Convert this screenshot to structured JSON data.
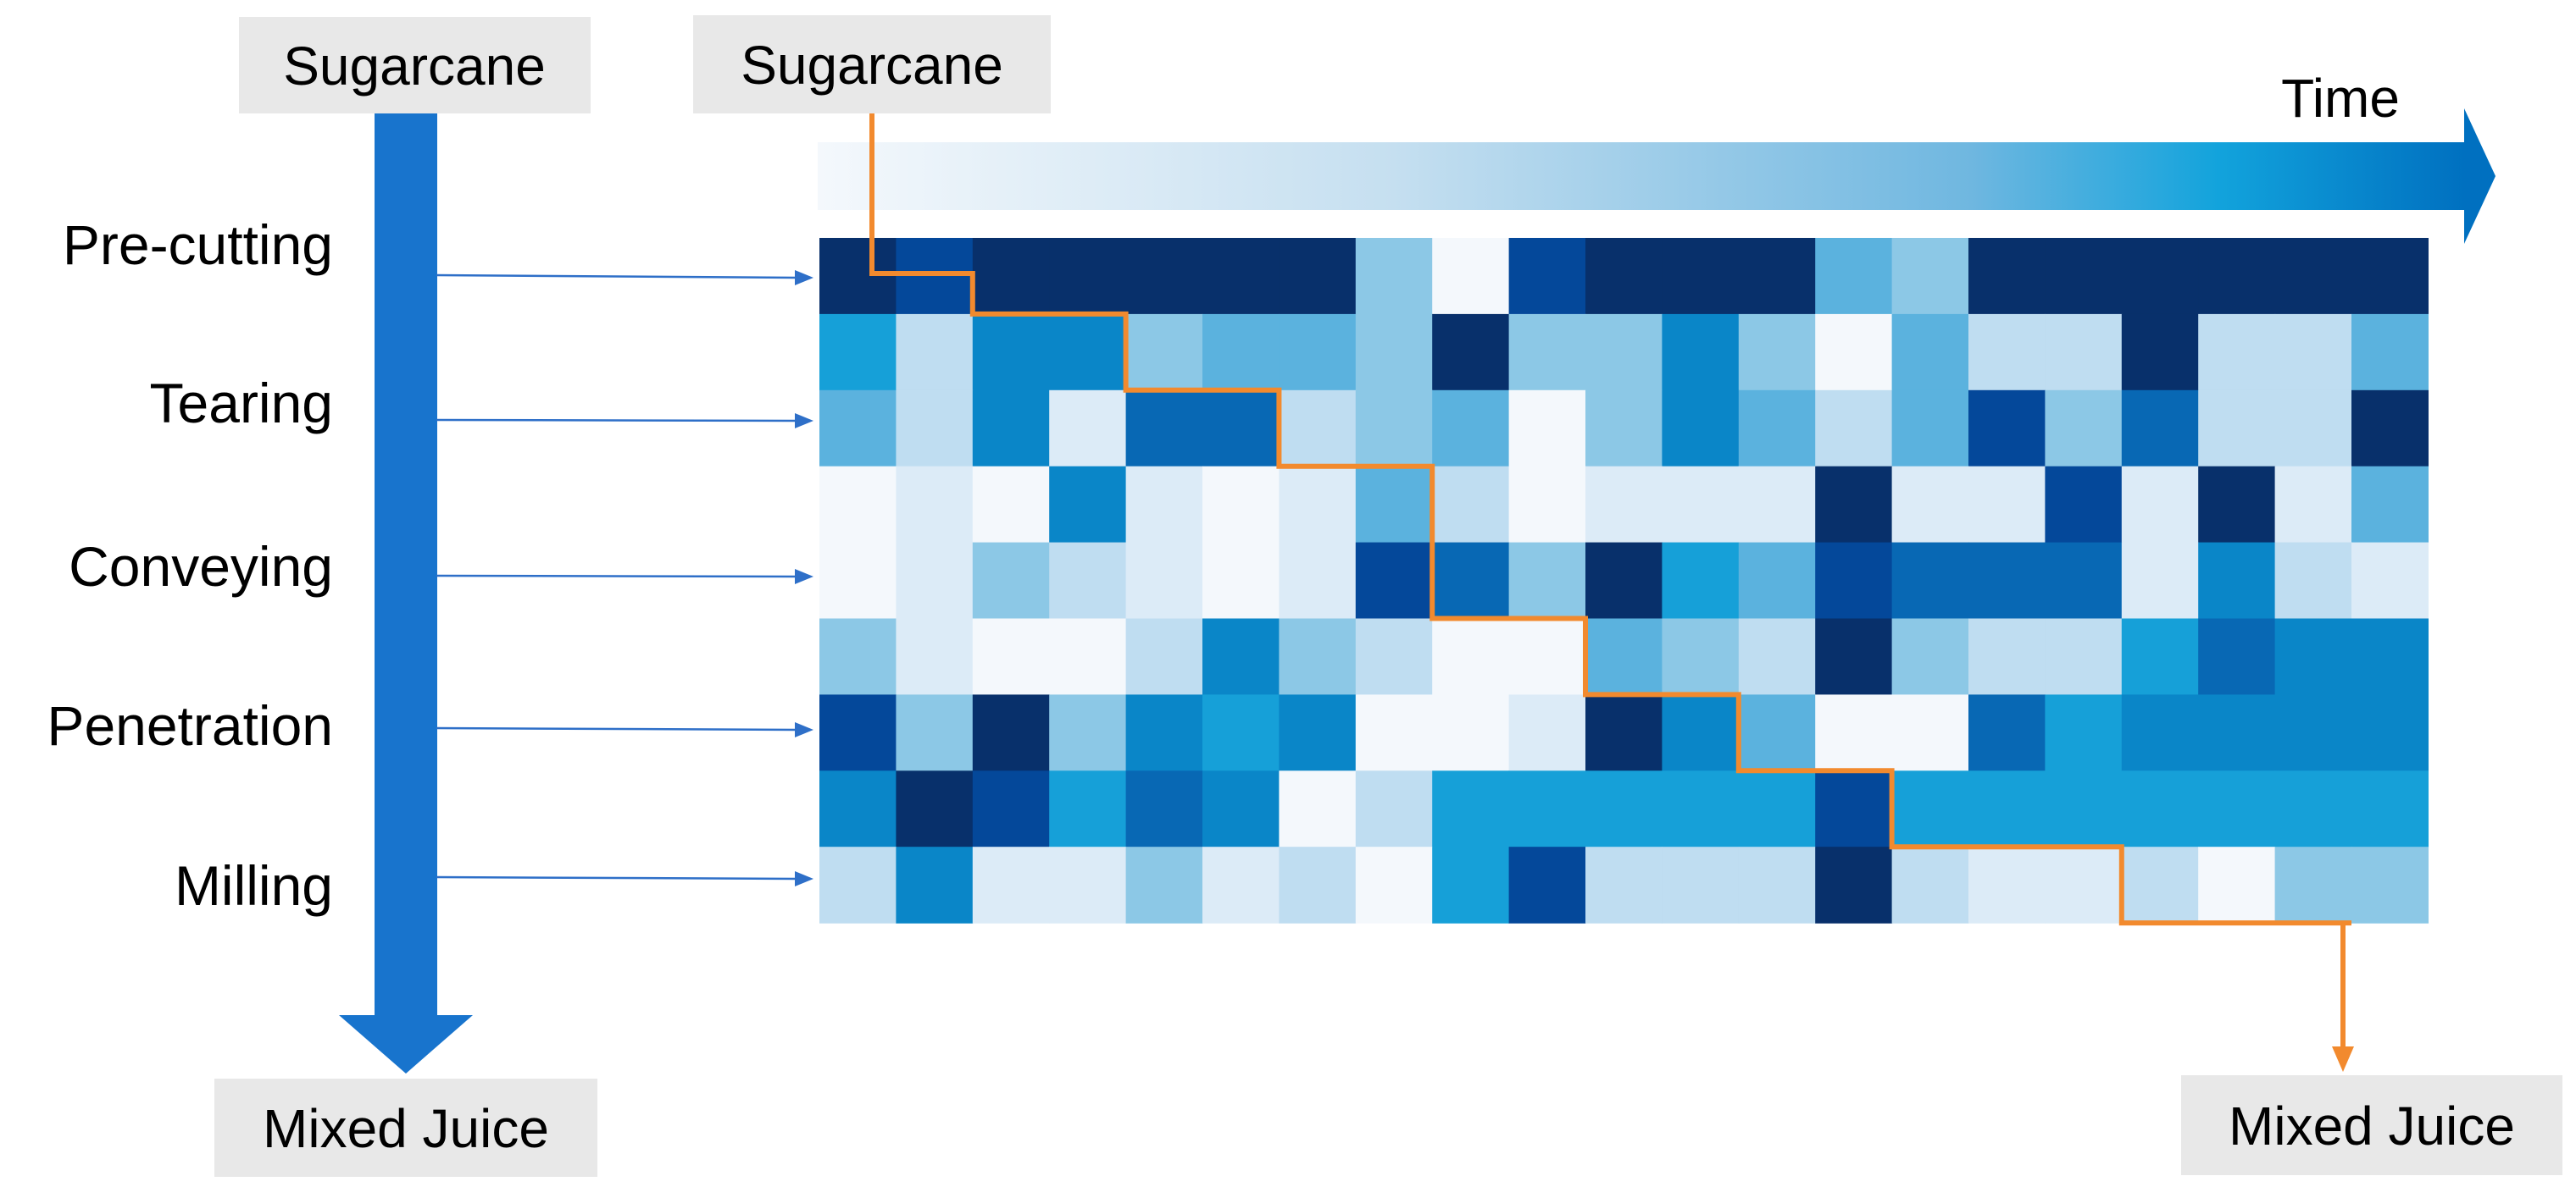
{
  "left_flow": {
    "input_label": "Sugarcane",
    "output_label": "Mixed Juice",
    "stages": [
      "Pre-cutting",
      "Tearing",
      "Conveying",
      "Penetration",
      "Milling"
    ]
  },
  "right_flow": {
    "input_label": "Sugarcane",
    "output_label": "Mixed Juice",
    "time_label": "Time"
  },
  "colors": {
    "flow_arrow": "#1874CD",
    "pointer_arrow": "#2E6FC8",
    "path": "#F28A2E",
    "box_fill": "#E8E8E8",
    "time_gradient_start": "#F4F8FC",
    "time_gradient_end": "#0070C0"
  },
  "heatmap_levels": [
    [
      9,
      8,
      9,
      9,
      9,
      9,
      9,
      3,
      0,
      8,
      9,
      9,
      9,
      4,
      3,
      9,
      9,
      9,
      9,
      9,
      9
    ],
    [
      5,
      2,
      6,
      6,
      3,
      4,
      4,
      3,
      9,
      3,
      3,
      6,
      3,
      0,
      4,
      2,
      2,
      9,
      2,
      2,
      4
    ],
    [
      4,
      2,
      6,
      1,
      7,
      7,
      2,
      3,
      4,
      0,
      3,
      6,
      4,
      2,
      4,
      8,
      3,
      7,
      2,
      2,
      9
    ],
    [
      0,
      1,
      0,
      6,
      1,
      0,
      1,
      4,
      2,
      0,
      1,
      1,
      1,
      9,
      1,
      1,
      8,
      1,
      9,
      1,
      4
    ],
    [
      0,
      1,
      3,
      2,
      1,
      0,
      1,
      8,
      7,
      3,
      9,
      5,
      4,
      8,
      7,
      7,
      7,
      1,
      6,
      2,
      1
    ],
    [
      3,
      1,
      0,
      0,
      2,
      6,
      3,
      2,
      0,
      0,
      4,
      3,
      2,
      9,
      3,
      2,
      2,
      5,
      7,
      6,
      6
    ],
    [
      8,
      3,
      9,
      3,
      6,
      5,
      6,
      0,
      0,
      1,
      9,
      6,
      4,
      0,
      0,
      7,
      5,
      6,
      6,
      6,
      6
    ],
    [
      6,
      9,
      8,
      5,
      7,
      6,
      0,
      2,
      5,
      5,
      5,
      5,
      5,
      8,
      5,
      5,
      5,
      5,
      5,
      5,
      5
    ],
    [
      2,
      6,
      1,
      1,
      3,
      1,
      2,
      0,
      5,
      8,
      2,
      2,
      2,
      9,
      2,
      1,
      1,
      2,
      0,
      3,
      3
    ]
  ],
  "path_steps": [
    {
      "col": 0,
      "row": 0
    },
    {
      "col": 2,
      "row": 1
    },
    {
      "col": 4,
      "row": 2
    },
    {
      "col": 6,
      "row": 3
    },
    {
      "col": 8,
      "row": 5
    },
    {
      "col": 10,
      "row": 6
    },
    {
      "col": 12,
      "row": 7
    },
    {
      "col": 14,
      "row": 8
    },
    {
      "col": 17,
      "row": 9
    },
    {
      "col": 20,
      "row": 9
    }
  ]
}
